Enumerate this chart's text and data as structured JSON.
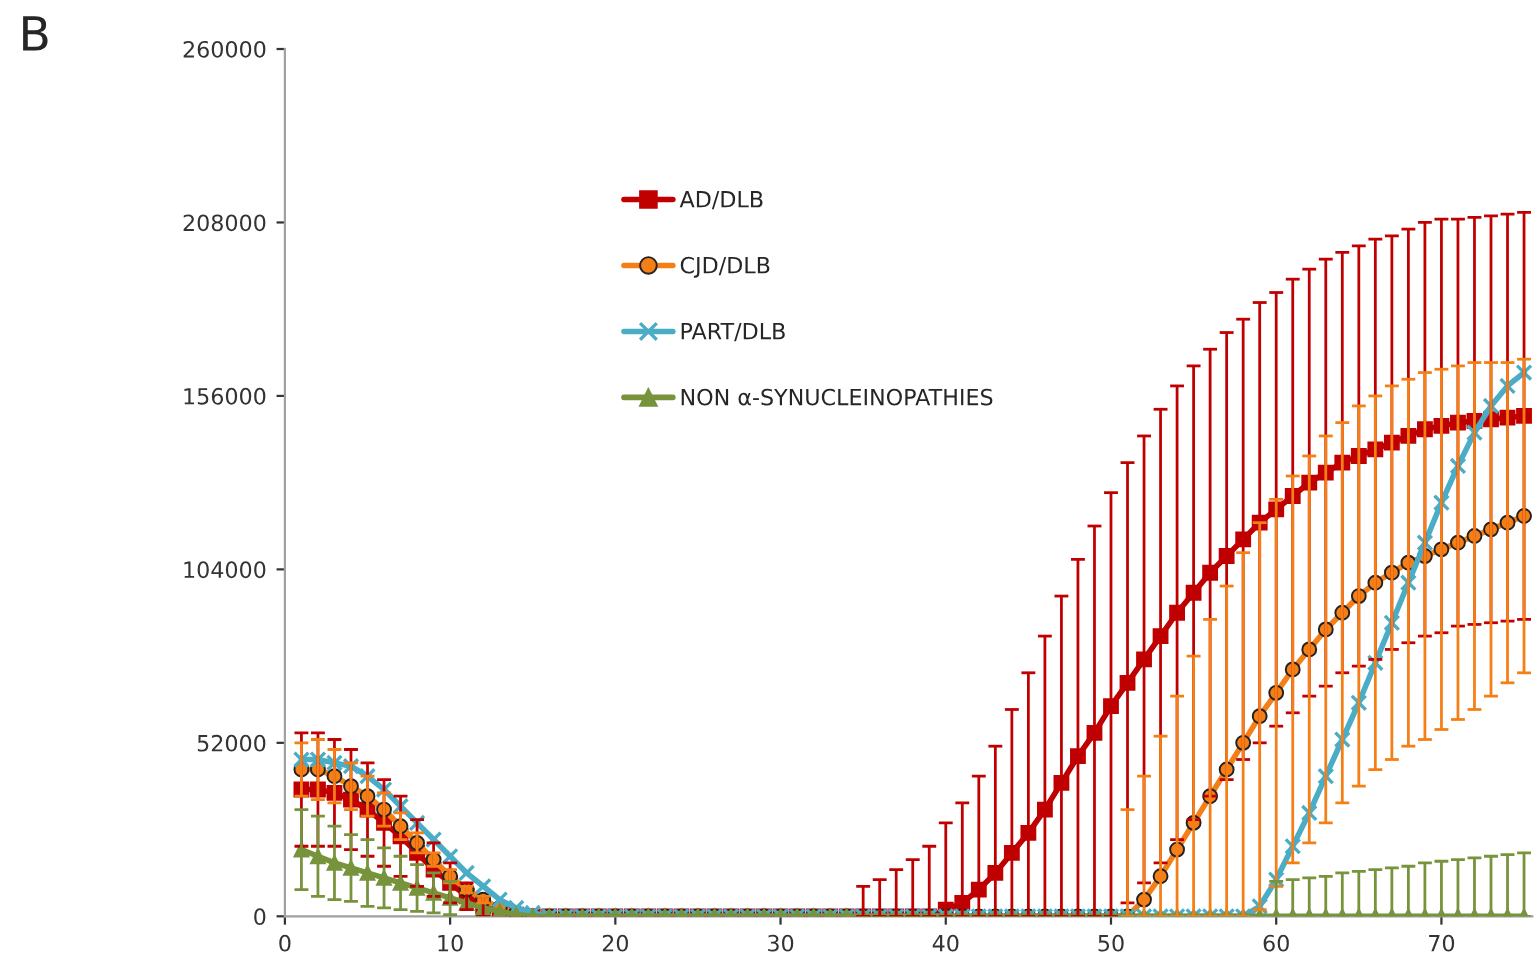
{
  "chart_data": {
    "type": "line",
    "title": "B",
    "x": [
      1,
      2,
      3,
      4,
      5,
      6,
      7,
      8,
      9,
      10,
      11,
      12,
      13,
      14,
      15,
      16,
      17,
      18,
      19,
      20,
      21,
      22,
      23,
      24,
      25,
      26,
      27,
      28,
      29,
      30,
      31,
      32,
      33,
      34,
      35,
      36,
      37,
      38,
      39,
      40,
      41,
      42,
      43,
      44,
      45,
      46,
      47,
      48,
      49,
      50,
      51,
      52,
      53,
      54,
      55,
      56,
      57,
      58,
      59,
      60,
      61,
      62,
      63,
      64,
      65,
      66,
      67,
      68,
      69,
      70,
      71,
      72,
      73,
      74,
      75
    ],
    "series": [
      {
        "name": "AD/DLB",
        "color": "#c00000",
        "marker": "square",
        "values": [
          38000,
          38000,
          37000,
          35000,
          32000,
          28000,
          24000,
          19000,
          14000,
          10000,
          6000,
          3000,
          1500,
          500,
          0,
          0,
          0,
          0,
          0,
          0,
          0,
          0,
          0,
          0,
          0,
          0,
          0,
          0,
          0,
          0,
          0,
          0,
          0,
          0,
          0,
          0,
          0,
          0,
          0,
          2000,
          4000,
          8000,
          13000,
          19000,
          25000,
          32000,
          40000,
          48000,
          55000,
          63000,
          70000,
          77000,
          84000,
          91000,
          97000,
          103000,
          108000,
          113000,
          118000,
          122000,
          126000,
          130000,
          133000,
          136000,
          138000,
          140000,
          142000,
          144000,
          146000,
          147000,
          148000,
          148500,
          149000,
          149500,
          150000
        ],
        "errors": [
          17000,
          17000,
          16000,
          15000,
          14000,
          13000,
          12000,
          10000,
          8000,
          6000,
          4000,
          3000,
          null,
          null,
          null,
          null,
          null,
          null,
          null,
          null,
          null,
          null,
          null,
          null,
          null,
          null,
          null,
          null,
          null,
          null,
          null,
          null,
          null,
          null,
          [
            0,
            9000
          ],
          [
            0,
            11000
          ],
          [
            0,
            14000
          ],
          [
            0,
            17000
          ],
          [
            0,
            21000
          ],
          [
            0,
            28000
          ],
          [
            0,
            34000
          ],
          [
            0,
            42000
          ],
          [
            0,
            51000
          ],
          [
            0,
            62000
          ],
          [
            0,
            73000
          ],
          [
            0,
            84000
          ],
          [
            0,
            96000
          ],
          [
            0,
            107000
          ],
          [
            0,
            117000
          ],
          [
            0,
            127000
          ],
          66000,
          67000,
          68000,
          68000,
          68000,
          67000,
          67000,
          66000,
          66000,
          65000,
          65000,
          64000,
          64000,
          63000,
          63000,
          63000,
          62000,
          62000,
          62000,
          62000,
          61000,
          61000,
          61000,
          61000,
          61000
        ]
      },
      {
        "name": "CJD/DLB",
        "color": "#f57f17",
        "marker": "circle",
        "values": [
          44000,
          44000,
          42000,
          39000,
          36000,
          32000,
          27000,
          22000,
          17000,
          12000,
          8000,
          5000,
          2500,
          1000,
          0,
          0,
          0,
          0,
          0,
          0,
          0,
          0,
          0,
          0,
          0,
          0,
          0,
          0,
          0,
          0,
          0,
          0,
          0,
          0,
          0,
          0,
          0,
          0,
          0,
          0,
          0,
          0,
          0,
          0,
          0,
          0,
          0,
          0,
          0,
          0,
          0,
          5000,
          12000,
          20000,
          28000,
          36000,
          44000,
          52000,
          60000,
          67000,
          74000,
          80000,
          86000,
          91000,
          96000,
          100000,
          103000,
          106000,
          108000,
          110000,
          112000,
          114000,
          116000,
          118000,
          120000
        ],
        "errors": [
          8000,
          9000,
          8000,
          7000,
          6000,
          5000,
          4000,
          3000,
          2000,
          2000,
          1000,
          1000,
          null,
          null,
          null,
          null,
          null,
          null,
          null,
          null,
          null,
          null,
          null,
          null,
          null,
          null,
          null,
          null,
          null,
          null,
          null,
          null,
          null,
          null,
          null,
          null,
          null,
          null,
          null,
          null,
          null,
          null,
          null,
          null,
          null,
          null,
          null,
          null,
          null,
          null,
          [
            0,
            32000
          ],
          [
            0,
            42000
          ],
          [
            0,
            54000
          ],
          [
            0,
            66000
          ],
          [
            0,
            78000
          ],
          [
            0,
            89000
          ],
          [
            0,
            99000
          ],
          [
            0,
            109000
          ],
          58000,
          58000,
          58000,
          58000,
          58000,
          57000,
          57000,
          56000,
          56000,
          55000,
          55000,
          54000,
          53000,
          52000,
          50000,
          48000,
          47000
        ]
      },
      {
        "name": "PART/DLB",
        "color": "#4bacc6",
        "marker": "cross",
        "values": [
          47000,
          47000,
          46000,
          45000,
          42000,
          38000,
          33000,
          28000,
          23000,
          18000,
          13000,
          9000,
          5000,
          2500,
          1000,
          0,
          0,
          0,
          0,
          0,
          0,
          0,
          0,
          0,
          0,
          0,
          0,
          0,
          0,
          0,
          0,
          0,
          0,
          0,
          0,
          0,
          0,
          0,
          0,
          0,
          0,
          0,
          0,
          0,
          0,
          0,
          0,
          0,
          0,
          0,
          0,
          0,
          0,
          0,
          0,
          0,
          0,
          0,
          3000,
          11000,
          21000,
          31000,
          42000,
          53000,
          64000,
          76000,
          88000,
          100000,
          112000,
          124000,
          135000,
          145000,
          153000,
          159000,
          163000
        ]
      },
      {
        "name": "NON α-SYNUCLEINOPATHIES",
        "color": "#77933c",
        "marker": "triangle",
        "values": [
          20000,
          18000,
          16000,
          14500,
          13000,
          11500,
          10000,
          8500,
          7000,
          5500,
          4000,
          2500,
          1500,
          500,
          0,
          0,
          0,
          0,
          0,
          0,
          0,
          0,
          0,
          0,
          0,
          0,
          0,
          0,
          0,
          0,
          0,
          0,
          0,
          0,
          0,
          0,
          0,
          0,
          0,
          0,
          0,
          0,
          0,
          0,
          0,
          0,
          0,
          0,
          0,
          0,
          0,
          0,
          0,
          0,
          0,
          0,
          0,
          0,
          0,
          0,
          0,
          0,
          0,
          0,
          0,
          0,
          0,
          0,
          0,
          0,
          0,
          0,
          0,
          0,
          0
        ],
        "errors": [
          12000,
          12000,
          11000,
          10000,
          10000,
          9000,
          8000,
          7000,
          6000,
          5000,
          null,
          null,
          null,
          null,
          null,
          null,
          null,
          null,
          null,
          null,
          null,
          null,
          null,
          null,
          null,
          null,
          null,
          null,
          null,
          null,
          null,
          null,
          null,
          null,
          null,
          null,
          null,
          null,
          null,
          null,
          null,
          null,
          null,
          null,
          null,
          null,
          null,
          null,
          null,
          null,
          null,
          null,
          null,
          null,
          null,
          null,
          null,
          null,
          null,
          [
            0,
            10500
          ],
          [
            0,
            11000
          ],
          [
            0,
            11500
          ],
          [
            0,
            12000
          ],
          [
            0,
            13000
          ],
          [
            0,
            13500
          ],
          [
            0,
            14000
          ],
          [
            0,
            14500
          ],
          [
            0,
            15000
          ],
          [
            0,
            16000
          ],
          [
            0,
            16500
          ],
          [
            0,
            17000
          ],
          [
            0,
            17500
          ],
          [
            0,
            18000
          ],
          [
            0,
            18500
          ],
          [
            0,
            19000
          ]
        ]
      }
    ],
    "xlim": [
      0,
      75.5
    ],
    "xticks": [
      0,
      10,
      20,
      30,
      40,
      50,
      60,
      70
    ],
    "ylim": [
      0,
      260000
    ],
    "yticks": [
      0,
      52000,
      104000,
      156000,
      208000,
      260000
    ],
    "legend": "top",
    "grid": false
  }
}
